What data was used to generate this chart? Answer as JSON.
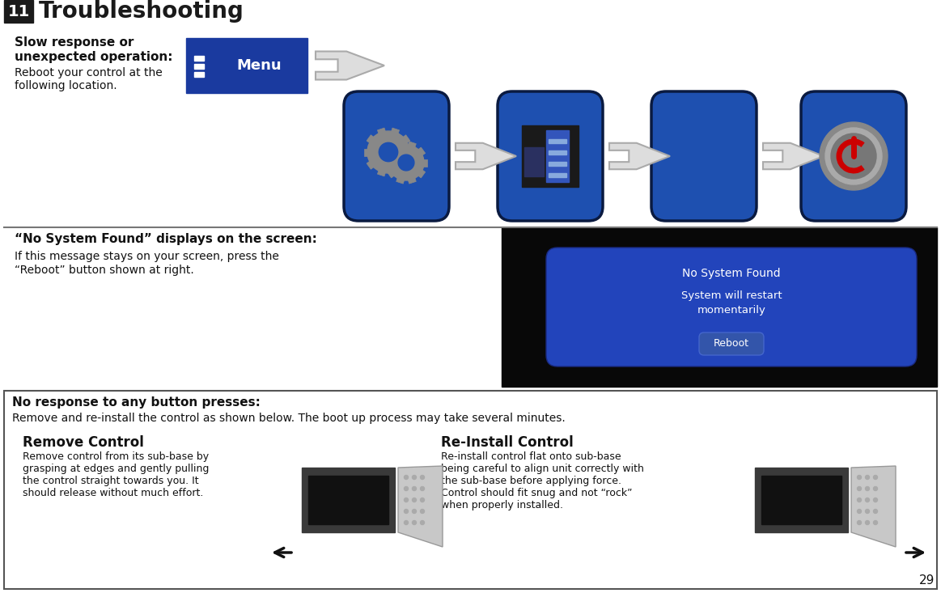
{
  "title_number": "11",
  "title_text": "Troubleshooting",
  "title_bg": "#1a1a1a",
  "title_fg": "#ffffff",
  "title_text_color": "#1a1a1a",
  "bg_color": "#ffffff",
  "page_number": "29",
  "section1": {
    "bold_line1": "Slow response or",
    "bold_line2": "unexpected operation:",
    "normal_line1": "Reboot your control at the",
    "normal_line2": "following location.",
    "menu_color": "#1a3a9f",
    "menu_text": "Menu",
    "icon_bg_top": "#2a5ab8",
    "icon_bg_bot": "#1a3a80",
    "arrow_color": "#bbbbbb",
    "arrow_edge": "#999999"
  },
  "section2": {
    "bold": "“No System Found” displays on the screen:",
    "normal_line1": "If this message stays on your screen, press the",
    "normal_line2": "“Reboot” button shown at right.",
    "screen_bg": "#080808",
    "inner_bg": "#2244bb",
    "text1": "No System Found",
    "text2": "System will restart\nmomentarily",
    "btn_text": "Reboot",
    "btn_color": "#3355aa",
    "btn_edge": "#4466cc"
  },
  "section3": {
    "bold": "No response to any button presses:",
    "normal": "Remove and re-install the control as shown below. The boot up process may take several minutes.",
    "col1_title": "Remove Control",
    "col1_body": "Remove control from its sub-base by\ngrasping at edges and gently pulling\nthe control straight towards you. It\nshould release without much effort.",
    "col2_title": "Re-Install Control",
    "col2_body": "Re-install control flat onto sub-base\nbeing careful to align unit correctly with\nthe sub-base before applying force.\nControl should fit snug and not “rock”\nwhen properly installed.",
    "border_color": "#555555"
  }
}
